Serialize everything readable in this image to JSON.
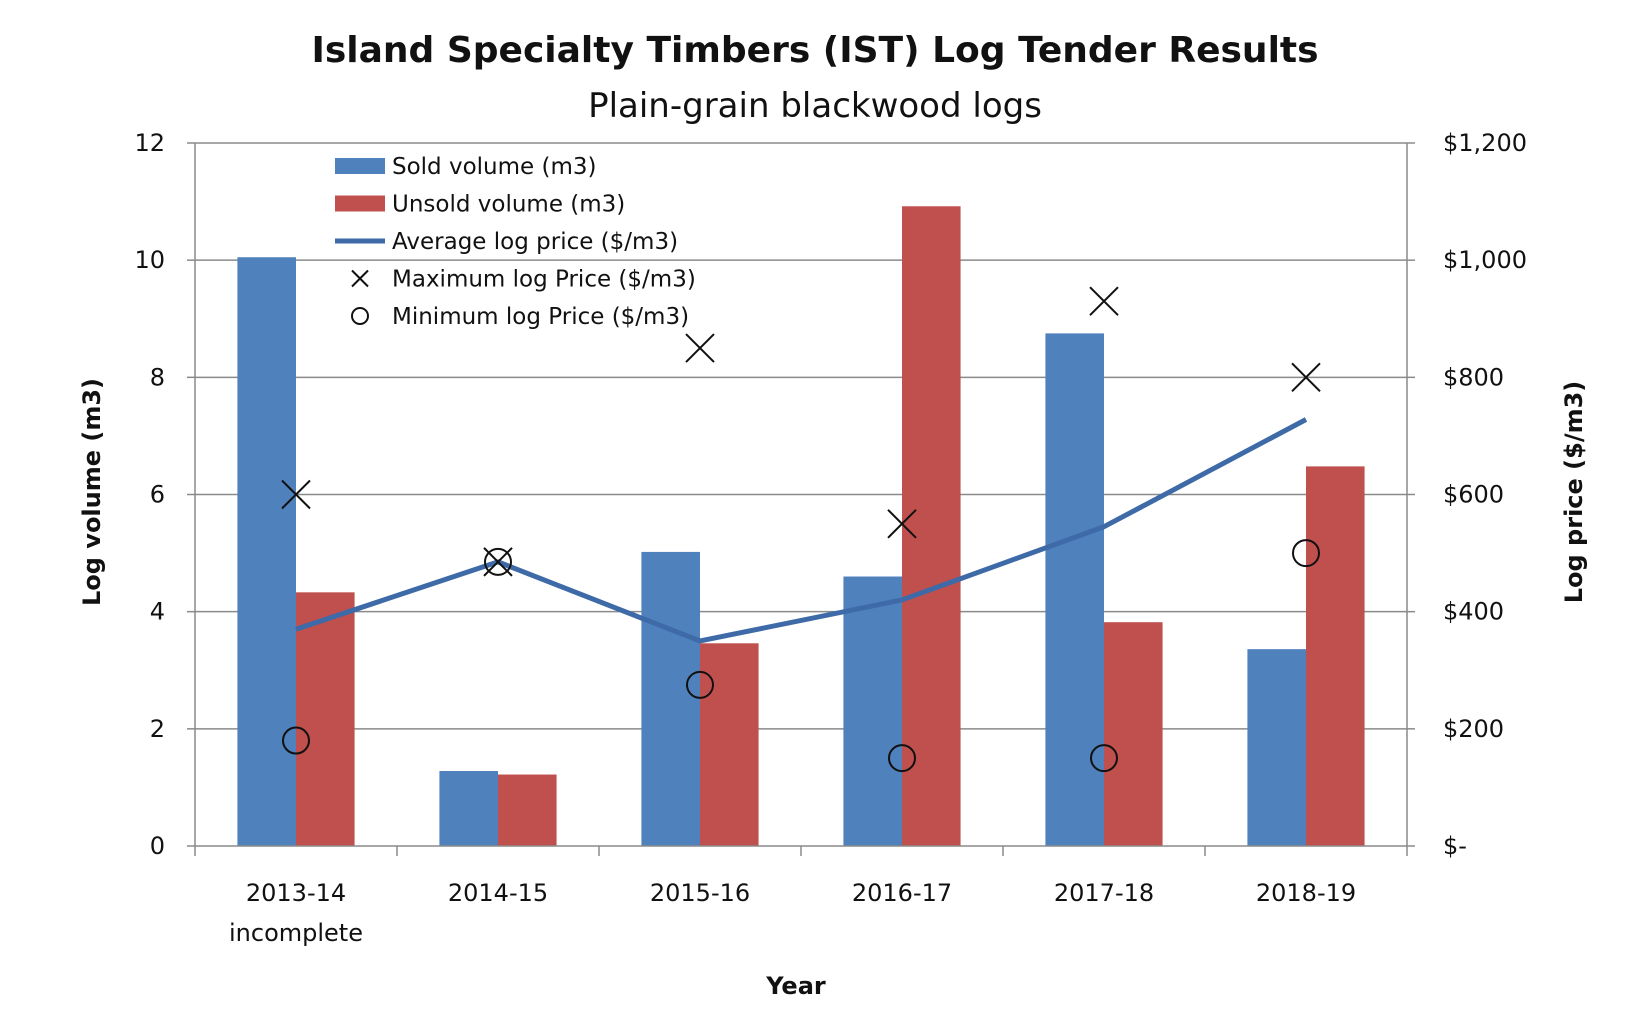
{
  "chart_data": {
    "type": "bar",
    "title": "Island Specialty Timbers (IST) Log Tender Results",
    "subtitle": "Plain-grain blackwood logs",
    "xlabel": "Year",
    "ylabel": "Log volume (m3)",
    "y2label": "Log price ($/m3)",
    "categories": [
      [
        "2013-14",
        "incomplete"
      ],
      [
        "2014-15"
      ],
      [
        "2015-16"
      ],
      [
        "2016-17"
      ],
      [
        "2017-18"
      ],
      [
        "2018-19"
      ]
    ],
    "ylim": [
      0,
      12
    ],
    "y2lim": [
      0,
      1200
    ],
    "yticks": [
      "0",
      "2",
      "4",
      "6",
      "8",
      "10",
      "12"
    ],
    "y2ticks": [
      "$-",
      "$200",
      "$400",
      "$600",
      "$800",
      "$1,000",
      "$1,200"
    ],
    "grid": true,
    "legend_position": "top-left",
    "colors": {
      "sold": "#4F81BD",
      "unsold": "#C0504D",
      "avg_line": "#3E6AA8",
      "marker": "#111111",
      "grid": "#8a8a8a"
    },
    "series": [
      {
        "name": "Sold volume (m3)",
        "kind": "bar",
        "axis": "left",
        "values": [
          10.05,
          1.28,
          5.02,
          4.6,
          8.75,
          3.36
        ]
      },
      {
        "name": "Unsold volume (m3)",
        "kind": "bar",
        "axis": "left",
        "values": [
          4.33,
          1.22,
          3.46,
          10.92,
          3.82,
          6.48
        ]
      },
      {
        "name": "Average log price ($/m3)",
        "kind": "line",
        "axis": "right",
        "values": [
          370,
          485,
          350,
          420,
          545,
          728
        ]
      },
      {
        "name": "Maximum log Price ($/m3)",
        "kind": "marker-x",
        "axis": "right",
        "values": [
          600,
          485,
          850,
          550,
          930,
          800
        ]
      },
      {
        "name": "Minimum log Price ($/m3)",
        "kind": "marker-o",
        "axis": "right",
        "values": [
          180,
          485,
          275,
          150,
          150,
          500
        ]
      }
    ]
  }
}
